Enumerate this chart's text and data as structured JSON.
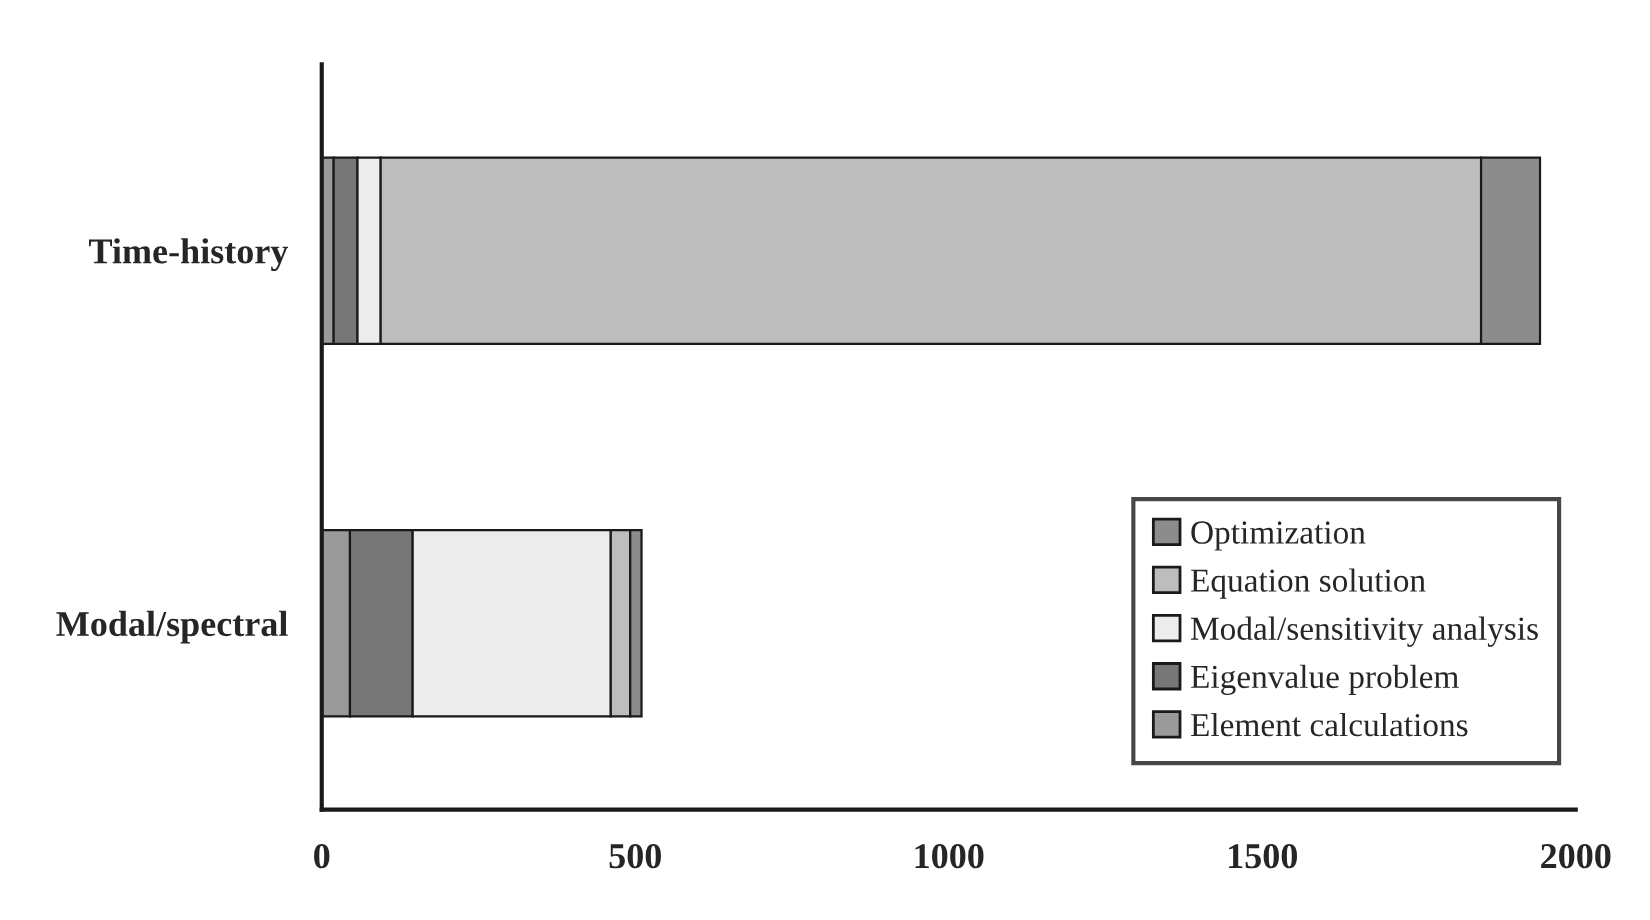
{
  "chart_data": {
    "type": "bar",
    "orientation": "horizontal",
    "stacked": true,
    "categories": [
      "Time-history",
      "Modal/spectral"
    ],
    "series": [
      {
        "name": "Element calculations",
        "color": "#9a9a9a",
        "values": [
          19,
          45
        ]
      },
      {
        "name": "Eigenvalue problem",
        "color": "#777777",
        "values": [
          38,
          100
        ]
      },
      {
        "name": "Modal/sensitivity analysis",
        "color": "#ececec",
        "values": [
          37,
          316
        ]
      },
      {
        "name": "Equation solution",
        "color": "#bdbdbd",
        "values": [
          1755,
          31
        ]
      },
      {
        "name": "Optimization",
        "color": "#8c8c8c",
        "values": [
          94,
          18
        ]
      }
    ],
    "xlim": [
      0,
      2000
    ],
    "xticks": [
      0,
      500,
      1000,
      1500,
      2000
    ],
    "grid": false,
    "legend": "bottom right"
  }
}
